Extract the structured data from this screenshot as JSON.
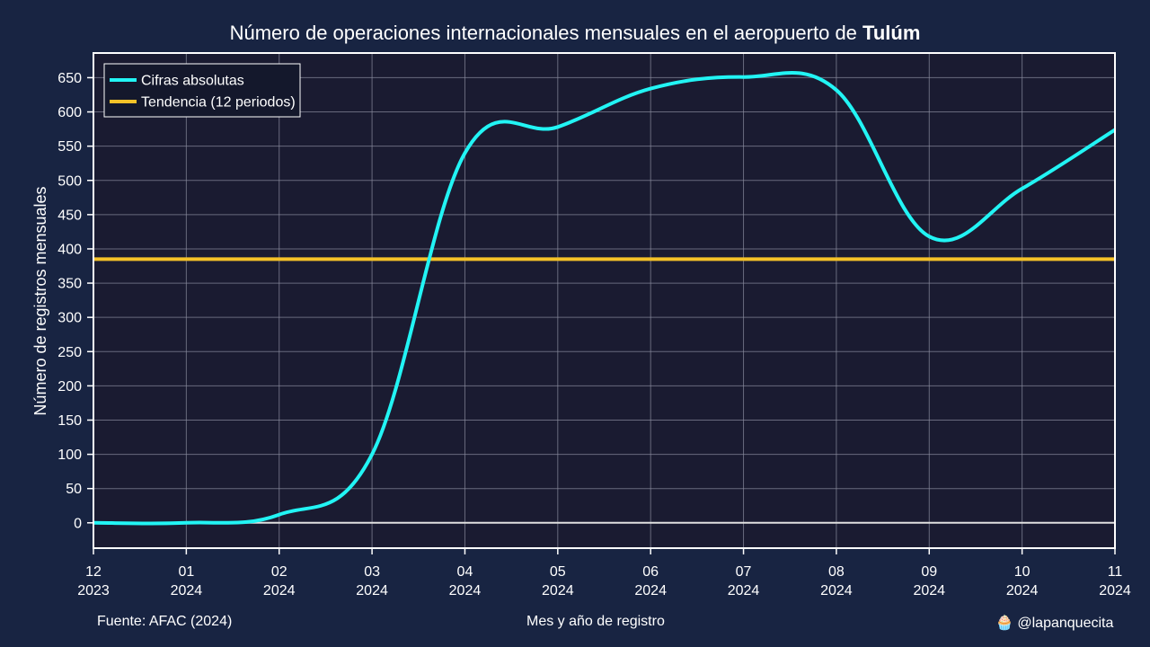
{
  "chart_data": {
    "type": "line",
    "title_prefix": "Número de operaciones internacionales mensuales en el aeropuerto de ",
    "title_bold": "Tulúm",
    "ylabel": "Número de registros mensuales",
    "xlabel": "Mes y año de registro",
    "ylim": [
      -37,
      686
    ],
    "yticks": [
      0,
      50,
      100,
      150,
      200,
      250,
      300,
      350,
      400,
      450,
      500,
      550,
      600,
      650
    ],
    "grid": true,
    "legend_position": "top-left",
    "x": [
      {
        "month": "12",
        "year": "2023"
      },
      {
        "month": "01",
        "year": "2024"
      },
      {
        "month": "02",
        "year": "2024"
      },
      {
        "month": "03",
        "year": "2024"
      },
      {
        "month": "04",
        "year": "2024"
      },
      {
        "month": "05",
        "year": "2024"
      },
      {
        "month": "06",
        "year": "2024"
      },
      {
        "month": "07",
        "year": "2024"
      },
      {
        "month": "08",
        "year": "2024"
      },
      {
        "month": "09",
        "year": "2024"
      },
      {
        "month": "10",
        "year": "2024"
      },
      {
        "month": "11",
        "year": "2024"
      }
    ],
    "series": [
      {
        "name": "Cifras absolutas",
        "color": "#22f4f4",
        "values": [
          0,
          0,
          12,
          100,
          540,
          578,
          634,
          651,
          632,
          418,
          488,
          574
        ]
      },
      {
        "name": "Tendencia (12 periodos)",
        "color": "#f5c228",
        "values": [
          385,
          385,
          385,
          385,
          385,
          385,
          385,
          385,
          385,
          385,
          385,
          385
        ]
      }
    ],
    "colors": {
      "background": "#182442",
      "plot_background": "#1a1b31",
      "grid": "#8a8c9e",
      "zero_line": "#e0e0e0"
    }
  },
  "footer": {
    "source": "Fuente: AFAC (2024)",
    "xlabel": "Mes y año de registro",
    "credit_icon": "🧁",
    "credit": "@lapanquecita"
  }
}
